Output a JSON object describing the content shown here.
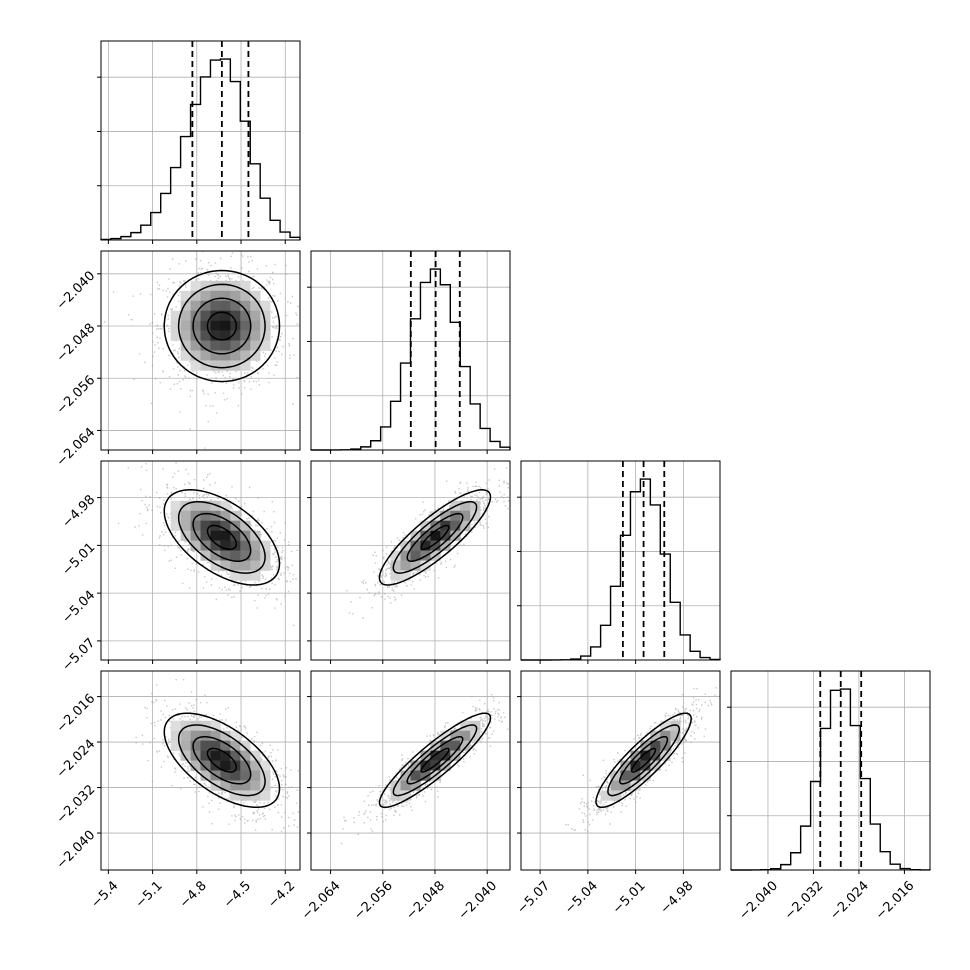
{
  "chart_data": {
    "type": "corner",
    "grid": true,
    "colors": {
      "frame": "#000000",
      "grid": "#b0b0b0",
      "points": "#9a9a9a"
    },
    "params": [
      {
        "id": "p0",
        "range": [
          -5.45,
          -4.1
        ],
        "ticks": [
          -5.4,
          -5.1,
          -4.8,
          -4.5,
          -4.2
        ],
        "tick_labels": [
          "−5.4",
          "−5.1",
          "−4.8",
          "−4.5",
          "−4.2"
        ],
        "mean": -4.63,
        "std": 0.17,
        "quantiles": [
          -4.83,
          -4.63,
          -4.45
        ]
      },
      {
        "id": "p1",
        "range": [
          -2.067,
          -2.0365
        ],
        "ticks": [
          -2.064,
          -2.056,
          -2.048,
          -2.04
        ],
        "tick_labels": [
          "−2.064",
          "−2.056",
          "−2.048",
          "−2.040"
        ],
        "mean": -2.048,
        "std": 0.0037,
        "quantiles": [
          -2.0517,
          -2.0479,
          -2.0442
        ]
      },
      {
        "id": "p2",
        "range": [
          -5.082,
          -4.957
        ],
        "ticks": [
          -5.07,
          -5.04,
          -5.01,
          -4.98
        ],
        "tick_labels": [
          "−5.07",
          "−5.04",
          "−5.01",
          "−4.98"
        ],
        "mean": -5.005,
        "std": 0.013,
        "quantiles": [
          -5.018,
          -5.005,
          -4.992
        ]
      },
      {
        "id": "p3",
        "range": [
          -2.0465,
          -2.0115
        ],
        "ticks": [
          -2.04,
          -2.032,
          -2.024,
          -2.016
        ],
        "tick_labels": [
          "−2.040",
          "−2.032",
          "−2.024",
          "−2.016"
        ],
        "mean": -2.0272,
        "std": 0.0036,
        "quantiles": [
          -2.0308,
          -2.0272,
          -2.0236
        ]
      }
    ],
    "correlations": [
      {
        "pair": [
          "p0",
          "p1"
        ],
        "rho": 0.0
      },
      {
        "pair": [
          "p0",
          "p2"
        ],
        "rho": -0.55
      },
      {
        "pair": [
          "p0",
          "p3"
        ],
        "rho": -0.6
      },
      {
        "pair": [
          "p1",
          "p2"
        ],
        "rho": 0.85
      },
      {
        "pair": [
          "p1",
          "p3"
        ],
        "rho": 0.9
      },
      {
        "pair": [
          "p2",
          "p3"
        ],
        "rho": 0.88
      }
    ],
    "contour_levels_sigma": [
      0.5,
      1.0,
      1.5,
      2.0
    ]
  }
}
